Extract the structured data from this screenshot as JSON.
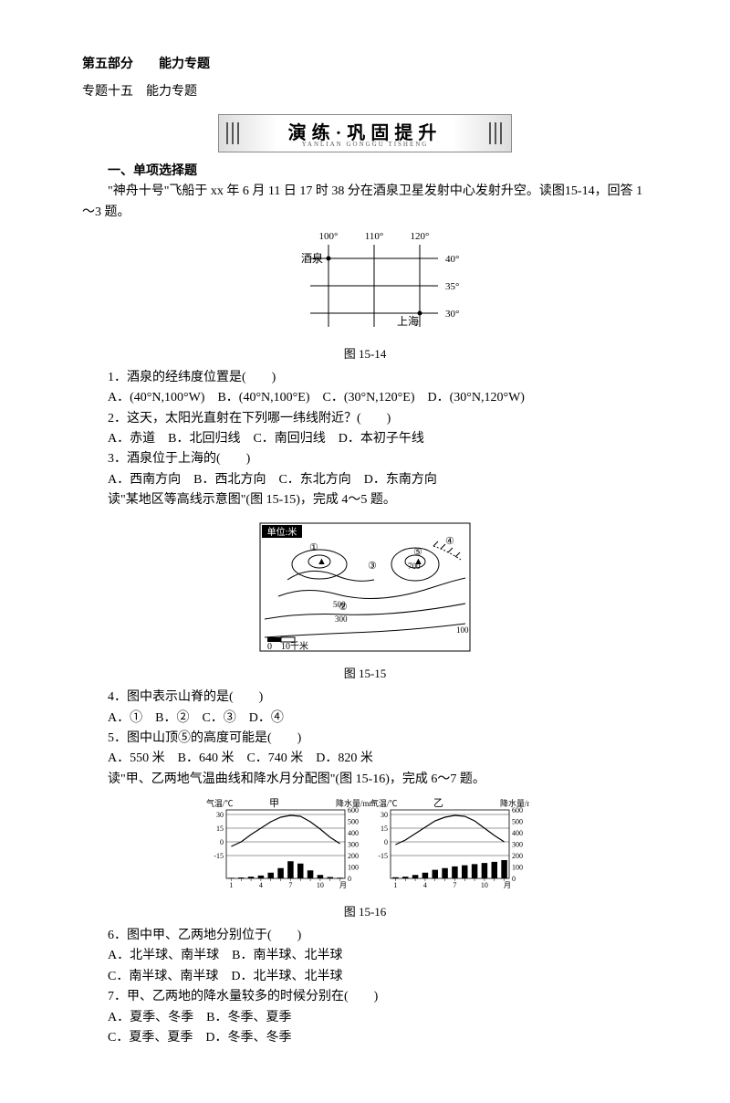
{
  "header": {
    "part": "第五部分　　能力专题",
    "topic": "专题十五　能力专题"
  },
  "banner": {
    "main": "演练·巩固提升",
    "sub": "YANLIAN   GONGGU TISHENG"
  },
  "sec1": {
    "heading": "一、单项选择题"
  },
  "intro1": {
    "text": "\"神舟十号\"飞船于 xx 年 6 月 11 日 17 时 38 分在酒泉卫星发射中心发射升空。读图15-14，回答 1～3 题。"
  },
  "fig14": {
    "caption": "图 15-14",
    "lons": [
      "100°",
      "110°",
      "120°"
    ],
    "lats": [
      "40°",
      "35°",
      "30°"
    ],
    "jiuquan": "酒泉",
    "shanghai": "上海",
    "grid_color": "#000000",
    "bg": "#ffffff"
  },
  "q1": {
    "stem": "1．酒泉的经纬度位置是(　　)",
    "opts": "A．(40°N,100°W)　B．(40°N,100°E)　C．(30°N,120°E)　D．(30°N,120°W)"
  },
  "q2": {
    "stem": "2．这天，太阳光直射在下列哪一纬线附近？(　　)",
    "opts": "A．赤道　B．北回归线　C．南回归线　D．本初子午线"
  },
  "q3": {
    "stem": "3．酒泉位于上海的(　　)",
    "opts": "A．西南方向　B．西北方向　C．东北方向　D．东南方向"
  },
  "intro2": {
    "text": "读\"某地区等高线示意图\"(图 15-15)，完成 4～5 题。"
  },
  "fig15": {
    "caption": "图 15-15",
    "unit_label": "单位:米",
    "scale_label": "0　10千米",
    "contours": [
      "100",
      "300",
      "500",
      "700"
    ],
    "marks": [
      "①",
      "②",
      "③",
      "④",
      "⑤"
    ],
    "stroke": "#000000"
  },
  "q4": {
    "stem": "4．图中表示山脊的是(　　)",
    "opts": "A．①　B．②　C．③　D．④"
  },
  "q5": {
    "stem": "5．图中山顶⑤的高度可能是(　　)",
    "opts": "A．550 米　B．640 米　C．740 米　D．820 米"
  },
  "intro3": {
    "text": "读\"甲、乙两地气温曲线和降水月分配图\"(图 15-16)，完成 6～7 题。"
  },
  "fig16": {
    "caption": "图 15-16",
    "temp_label": "气温/℃",
    "precip_label": "降水量/mm",
    "jia": "甲",
    "yi": "乙",
    "temp_ticks": [
      "30",
      "15",
      "0",
      "-15"
    ],
    "precip_ticks": [
      "600",
      "500",
      "400",
      "300",
      "200",
      "100",
      "0"
    ],
    "month_ticks": [
      "1",
      "4",
      "7",
      "10",
      "月"
    ],
    "jia_temp": [
      -5,
      0,
      8,
      15,
      22,
      27,
      29,
      28,
      22,
      14,
      5,
      -2
    ],
    "jia_precip": [
      5,
      8,
      15,
      25,
      50,
      90,
      150,
      130,
      70,
      30,
      12,
      6
    ],
    "yi_temp": [
      -3,
      2,
      9,
      16,
      23,
      27,
      29,
      28,
      23,
      15,
      7,
      0
    ],
    "yi_precip": [
      10,
      15,
      30,
      50,
      75,
      90,
      105,
      115,
      125,
      135,
      145,
      160
    ],
    "stroke": "#000000",
    "bar_fill": "#000000"
  },
  "q6": {
    "stem": "6．图中甲、乙两地分别位于(　　)",
    "opts_a": "A．北半球、南半球　B．南半球、北半球",
    "opts_b": "C．南半球、南半球　D．北半球、北半球"
  },
  "q7": {
    "stem": "7．甲、乙两地的降水量较多的时候分别在(　　)",
    "opts_a": " A．夏季、冬季　B．冬季、夏季",
    "opts_b": "C．夏季、夏季　D．冬季、冬季"
  }
}
